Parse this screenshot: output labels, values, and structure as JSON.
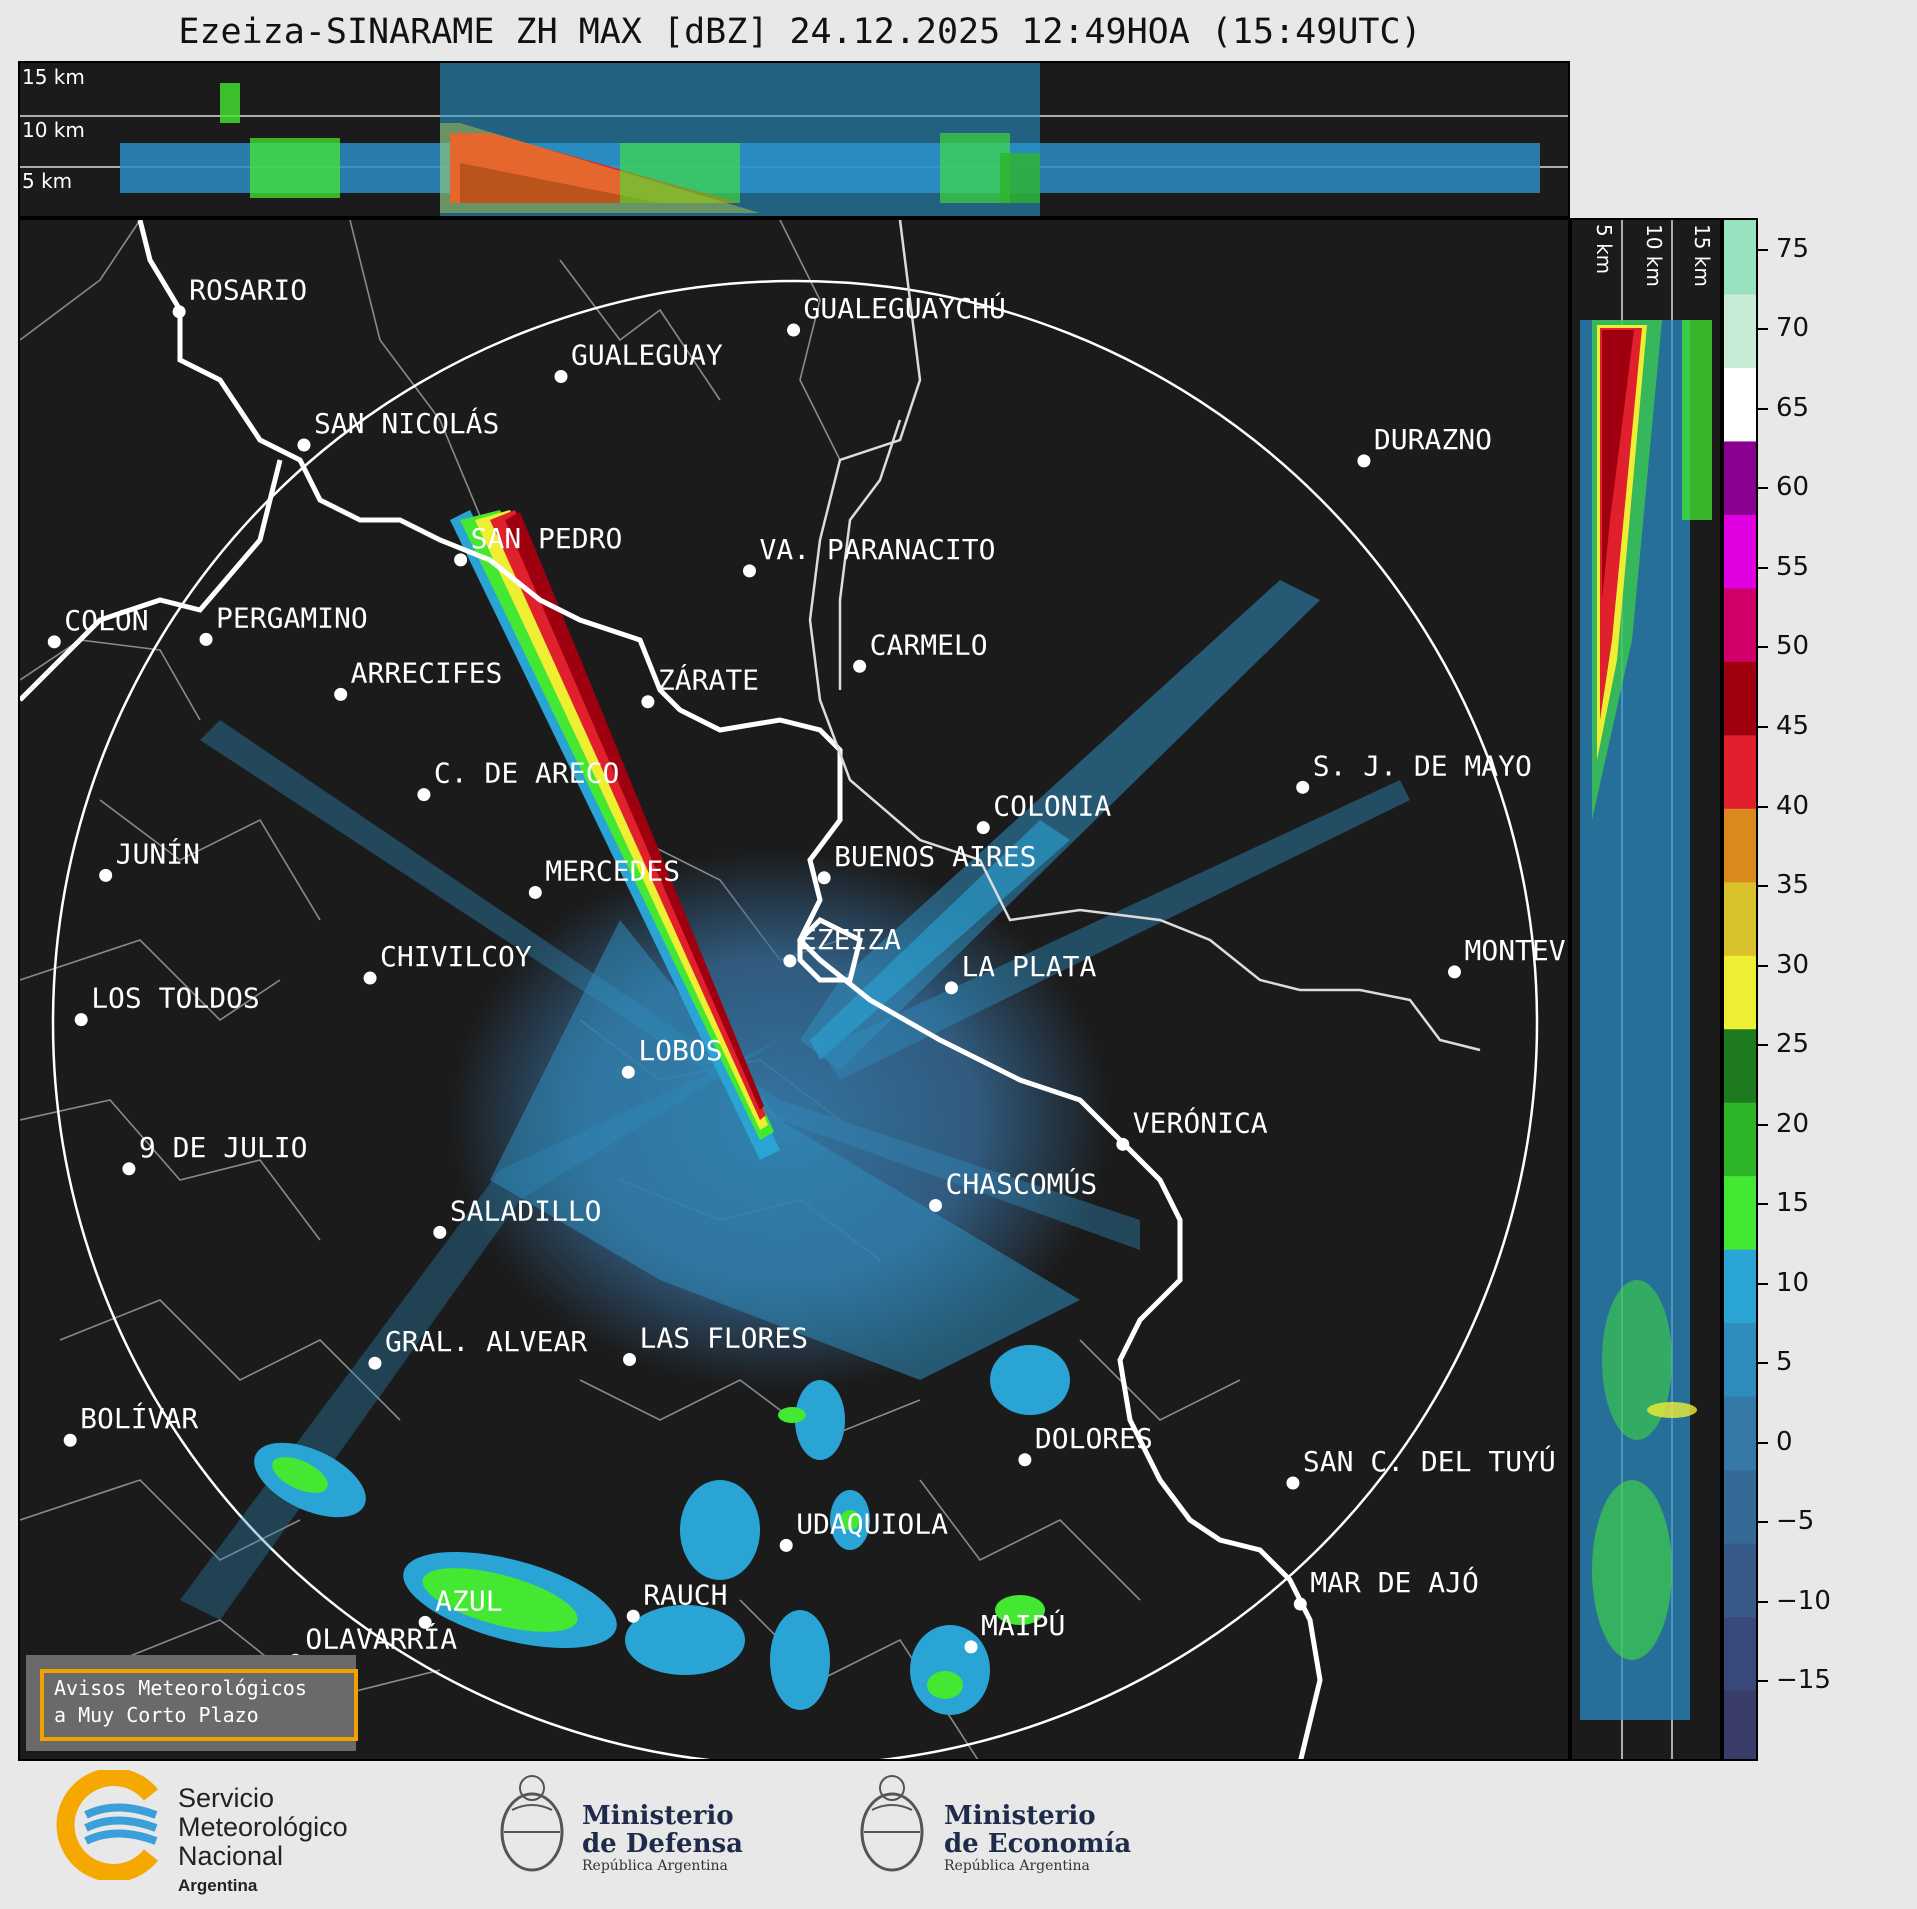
{
  "title": "Ezeiza-SINARAME ZH MAX [dBZ] 24.12.2025 12:49HOA (15:49UTC)",
  "top_profile_labels": [
    "15 km",
    "10 km",
    "5 km"
  ],
  "side_profile_labels": [
    "5 km",
    "10 km",
    "15 km"
  ],
  "cities": [
    {
      "name": "ROSARIO"
    },
    {
      "name": "GUALEGUAYCHÚ"
    },
    {
      "name": "GUALEGUAY"
    },
    {
      "name": "SAN NICOLÁS"
    },
    {
      "name": "DURAZNO"
    },
    {
      "name": "SAN PEDRO"
    },
    {
      "name": "VA. PARANACITO"
    },
    {
      "name": "COLON"
    },
    {
      "name": "PERGAMINO"
    },
    {
      "name": "CARMELO"
    },
    {
      "name": "ARRECIFES"
    },
    {
      "name": "ZÁRATE"
    },
    {
      "name": "S. J. DE MAYO"
    },
    {
      "name": "C. DE ARECO"
    },
    {
      "name": "COLONIA"
    },
    {
      "name": "BUENOS AIRES"
    },
    {
      "name": "JUNÍN"
    },
    {
      "name": "MERCEDES"
    },
    {
      "name": "EZEIZA"
    },
    {
      "name": "MONTEVIDEO"
    },
    {
      "name": "CHIVILCOY"
    },
    {
      "name": "LA PLATA"
    },
    {
      "name": "LOS TOLDOS"
    },
    {
      "name": "LOBOS"
    },
    {
      "name": "VERÓNICA"
    },
    {
      "name": "9 DE JULIO"
    },
    {
      "name": "CHASCOMÚS"
    },
    {
      "name": "SALADILLO"
    },
    {
      "name": "GRAL. ALVEAR"
    },
    {
      "name": "LAS FLORES"
    },
    {
      "name": "BOLÍVAR"
    },
    {
      "name": "DOLORES"
    },
    {
      "name": "SAN C. DEL TUYÚ"
    },
    {
      "name": "UDAQUIOLA"
    },
    {
      "name": "MAR DE AJÓ"
    },
    {
      "name": "RAUCH"
    },
    {
      "name": "AZUL"
    },
    {
      "name": "MAIPÚ"
    },
    {
      "name": "OLAVARRÍA"
    }
  ],
  "colorbar": {
    "unit": "dBZ",
    "range": [
      -20,
      77
    ],
    "ticks": [
      "75",
      "70",
      "65",
      "60",
      "55",
      "50",
      "45",
      "40",
      "35",
      "30",
      "25",
      "20",
      "15",
      "10",
      "5",
      "0",
      "−5",
      "−10",
      "−15"
    ],
    "tick_values": [
      75,
      70,
      65,
      60,
      55,
      50,
      45,
      40,
      35,
      30,
      25,
      20,
      15,
      10,
      5,
      0,
      -5,
      -10,
      -15
    ],
    "colors": [
      "#3a3d6a",
      "#394a7a",
      "#385a88",
      "#366a96",
      "#3479a8",
      "#2f8cbc",
      "#2aa4d4",
      "#44e832",
      "#2db52a",
      "#1e7a1e",
      "#eeee33",
      "#d9c12c",
      "#d98a1a",
      "#e0202c",
      "#9e0010",
      "#d0006a",
      "#e000e0",
      "#8a0090",
      "#ffffff",
      "#c7ecd6",
      "#98e2bf"
    ]
  },
  "warning": {
    "line1": "Avisos Meteorológicos",
    "line2": "a Muy Corto Plazo"
  },
  "logos": {
    "smn": {
      "line1": "Servicio",
      "line2": "Meteorológico",
      "line3": "Nacional",
      "line4": "Argentina"
    },
    "defensa": {
      "line1": "Ministerio",
      "line2": "de Defensa",
      "line3": "República Argentina"
    },
    "economia": {
      "line1": "Ministerio",
      "line2": "de Economía",
      "line3": "República Argentina"
    }
  }
}
